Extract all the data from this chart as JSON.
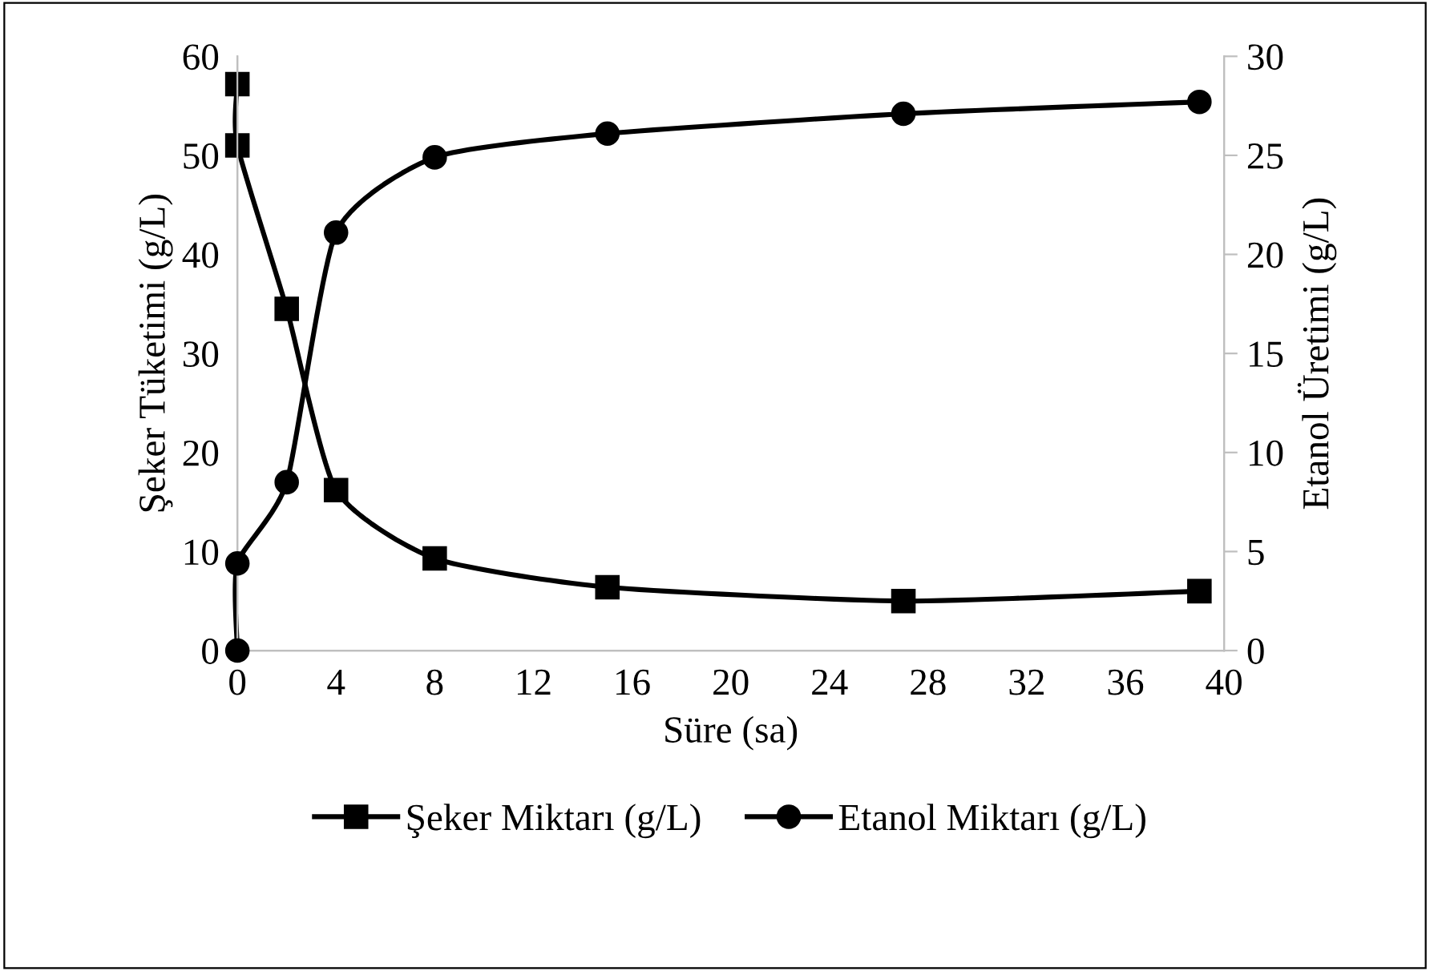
{
  "chart_data": {
    "type": "line",
    "xlabel": "Süre (sa)",
    "ylabel": "Şeker Tüketimi (g/L)",
    "y2label": "Etanol Üretimi (g/L)",
    "xlim": [
      0,
      40
    ],
    "xticks": [
      0,
      4,
      8,
      12,
      16,
      20,
      24,
      28,
      32,
      36,
      40
    ],
    "ylim": [
      0,
      60
    ],
    "yticks": [
      0,
      10,
      20,
      30,
      40,
      50,
      60
    ],
    "y2lim": [
      0,
      30
    ],
    "y2ticks": [
      0,
      5,
      10,
      15,
      20,
      25,
      30
    ],
    "grid": false,
    "legend": "bottom",
    "line_style": "solid",
    "series": [
      {
        "name": "Şeker Miktarı (g/L)",
        "color": "#000000",
        "marker": "square",
        "x": [
          0,
          0,
          2,
          4,
          8,
          15,
          27,
          39
        ],
        "values": [
          57.2,
          51.0,
          34.5,
          16.2,
          9.3,
          6.4,
          5.0,
          6.0
        ]
      },
      {
        "name": "Etanol Miktarı (g/L)",
        "color": "#000000",
        "marker": "circle",
        "axis": "y2",
        "x": [
          0,
          0,
          2,
          4,
          8,
          15,
          27,
          39
        ],
        "values": [
          0,
          4.4,
          8.5,
          21.1,
          24.9,
          26.1,
          27.1,
          27.7
        ]
      }
    ]
  }
}
